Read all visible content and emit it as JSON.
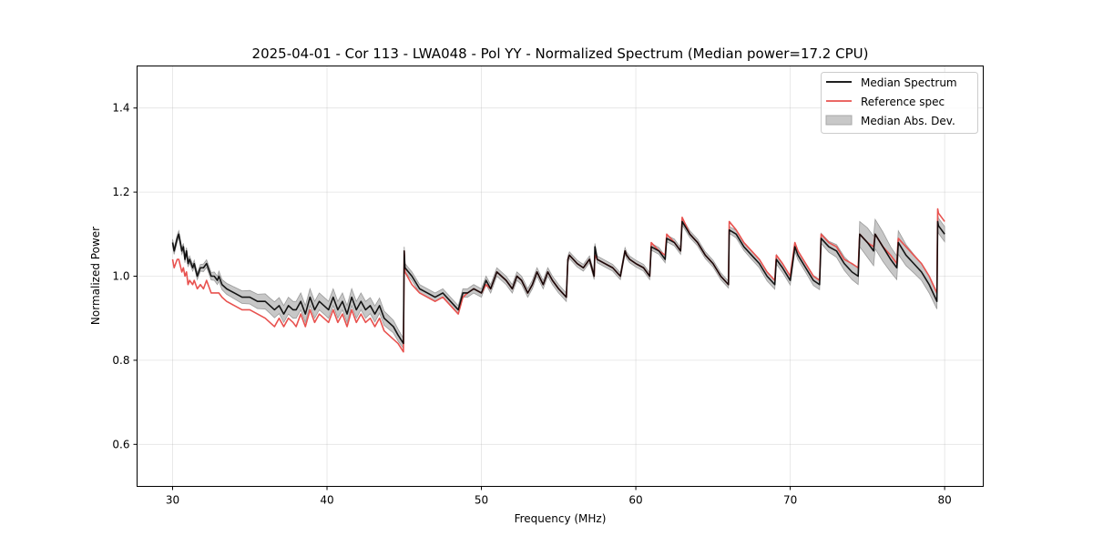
{
  "chart_data": {
    "type": "line",
    "title": "2025-04-01 - Cor 113 - LWA048 - Pol YY - Normalized Spectrum (Median power=17.2 CPU)",
    "xlabel": "Frequency (MHz)",
    "ylabel": "Normalized Power",
    "xlim": [
      27.7,
      82.5
    ],
    "ylim": [
      0.5,
      1.5
    ],
    "xticks": [
      30,
      40,
      50,
      60,
      70,
      80
    ],
    "yticks": [
      0.6,
      0.8,
      1.0,
      1.2,
      1.4
    ],
    "grid": true,
    "legend": {
      "position": "top-right",
      "entries": [
        "Median Spectrum",
        "Reference spec",
        "Median Abs. Dev."
      ]
    },
    "colors": {
      "median": "#000000",
      "reference": "#e8524f",
      "mad_band": "#bdbdbd"
    },
    "series": [
      {
        "name": "Median Spectrum",
        "x": [
          30.0,
          30.1,
          30.3,
          30.4,
          30.6,
          30.7,
          30.8,
          30.9,
          31.0,
          31.1,
          31.3,
          31.4,
          31.6,
          31.8,
          32.0,
          32.2,
          32.4,
          32.5,
          32.7,
          32.9,
          33.0,
          33.2,
          33.5,
          34.0,
          34.5,
          35.0,
          35.5,
          36.0,
          36.3,
          36.6,
          36.9,
          37.2,
          37.5,
          37.8,
          38.0,
          38.3,
          38.6,
          38.9,
          39.2,
          39.5,
          39.8,
          40.1,
          40.4,
          40.7,
          41.0,
          41.3,
          41.6,
          41.9,
          42.2,
          42.5,
          42.8,
          43.1,
          43.4,
          43.7,
          44.0,
          44.3,
          44.6,
          44.95,
          45.0,
          45.05,
          45.5,
          46.0,
          46.5,
          47.0,
          47.5,
          48.0,
          48.5,
          48.8,
          49.1,
          49.5,
          50.0,
          50.3,
          50.6,
          51.0,
          51.3,
          51.6,
          52.0,
          52.3,
          52.6,
          53.0,
          53.3,
          53.6,
          54.0,
          54.3,
          54.6,
          55.0,
          55.5,
          55.6,
          55.7,
          56.2,
          56.6,
          57.0,
          57.3,
          57.35,
          57.5,
          58.0,
          58.5,
          59.0,
          59.3,
          59.4,
          59.6,
          60.0,
          60.5,
          60.9,
          61.0,
          61.5,
          61.9,
          62.0,
          62.5,
          62.9,
          63.0,
          63.5,
          64.0,
          64.5,
          65.0,
          65.5,
          66.0,
          66.05,
          66.5,
          67.0,
          67.5,
          68.0,
          68.5,
          69.0,
          69.1,
          69.5,
          70.0,
          70.3,
          70.5,
          71.0,
          71.5,
          71.9,
          72.0,
          72.5,
          73.0,
          73.5,
          74.0,
          74.4,
          74.5,
          75.0,
          75.4,
          75.5,
          76.0,
          76.5,
          76.9,
          77.0,
          77.5,
          78.0,
          78.5,
          79.0,
          79.5,
          79.55,
          79.6,
          80.0
        ],
        "values": [
          1.08,
          1.06,
          1.09,
          1.1,
          1.06,
          1.07,
          1.04,
          1.06,
          1.03,
          1.04,
          1.02,
          1.03,
          1.0,
          1.02,
          1.02,
          1.03,
          1.01,
          1.0,
          1.0,
          0.99,
          1.0,
          0.98,
          0.97,
          0.96,
          0.95,
          0.95,
          0.94,
          0.94,
          0.93,
          0.92,
          0.93,
          0.91,
          0.93,
          0.92,
          0.92,
          0.94,
          0.91,
          0.95,
          0.92,
          0.94,
          0.93,
          0.92,
          0.95,
          0.92,
          0.94,
          0.91,
          0.95,
          0.92,
          0.94,
          0.92,
          0.93,
          0.91,
          0.93,
          0.9,
          0.89,
          0.88,
          0.86,
          0.84,
          1.06,
          1.02,
          1.0,
          0.97,
          0.96,
          0.95,
          0.96,
          0.94,
          0.92,
          0.96,
          0.96,
          0.97,
          0.96,
          0.99,
          0.97,
          1.01,
          1.0,
          0.99,
          0.97,
          1.0,
          0.99,
          0.96,
          0.98,
          1.01,
          0.98,
          1.01,
          0.99,
          0.97,
          0.95,
          1.04,
          1.05,
          1.03,
          1.02,
          1.04,
          1.0,
          1.07,
          1.04,
          1.03,
          1.02,
          1.0,
          1.06,
          1.05,
          1.04,
          1.03,
          1.02,
          1.0,
          1.07,
          1.06,
          1.04,
          1.09,
          1.08,
          1.06,
          1.13,
          1.1,
          1.08,
          1.05,
          1.03,
          1.0,
          0.98,
          1.11,
          1.1,
          1.07,
          1.05,
          1.03,
          1.0,
          0.98,
          1.04,
          1.02,
          0.99,
          1.07,
          1.05,
          1.02,
          0.99,
          0.98,
          1.09,
          1.07,
          1.06,
          1.03,
          1.01,
          1.0,
          1.1,
          1.08,
          1.06,
          1.1,
          1.07,
          1.04,
          1.02,
          1.08,
          1.05,
          1.03,
          1.01,
          0.98,
          0.94,
          1.13,
          1.12,
          1.1
        ]
      },
      {
        "name": "Reference spec",
        "x": [
          30.0,
          30.1,
          30.3,
          30.4,
          30.6,
          30.7,
          30.8,
          30.9,
          31.0,
          31.1,
          31.3,
          31.4,
          31.6,
          31.8,
          32.0,
          32.2,
          32.4,
          32.5,
          32.7,
          32.9,
          33.0,
          33.2,
          33.5,
          34.0,
          34.5,
          35.0,
          35.5,
          36.0,
          36.3,
          36.6,
          36.9,
          37.2,
          37.5,
          37.8,
          38.0,
          38.3,
          38.6,
          38.9,
          39.2,
          39.5,
          39.8,
          40.1,
          40.4,
          40.7,
          41.0,
          41.3,
          41.6,
          41.9,
          42.2,
          42.5,
          42.8,
          43.1,
          43.4,
          43.7,
          44.0,
          44.3,
          44.6,
          44.95,
          45.0,
          45.05,
          45.5,
          46.0,
          46.5,
          47.0,
          47.5,
          48.0,
          48.5,
          48.8,
          49.1,
          49.5,
          50.0,
          50.3,
          50.6,
          51.0,
          51.3,
          51.6,
          52.0,
          52.3,
          52.6,
          53.0,
          53.3,
          53.6,
          54.0,
          54.3,
          54.6,
          55.0,
          55.5,
          55.6,
          55.7,
          56.2,
          56.6,
          57.0,
          57.3,
          57.35,
          57.5,
          58.0,
          58.5,
          59.0,
          59.3,
          59.4,
          59.6,
          60.0,
          60.5,
          60.9,
          61.0,
          61.5,
          61.9,
          62.0,
          62.5,
          62.9,
          63.0,
          63.5,
          64.0,
          64.5,
          65.0,
          65.5,
          66.0,
          66.05,
          66.5,
          67.0,
          67.5,
          68.0,
          68.5,
          69.0,
          69.1,
          69.5,
          70.0,
          70.3,
          70.5,
          71.0,
          71.5,
          71.9,
          72.0,
          72.5,
          73.0,
          73.5,
          74.0,
          74.4,
          74.5,
          75.0,
          75.4,
          75.5,
          76.0,
          76.5,
          76.9,
          77.0,
          77.5,
          78.0,
          78.5,
          79.0,
          79.5,
          79.55,
          79.6,
          80.0
        ],
        "values": [
          1.04,
          1.02,
          1.04,
          1.04,
          1.01,
          1.02,
          1.0,
          1.01,
          0.98,
          0.99,
          0.98,
          0.99,
          0.97,
          0.98,
          0.97,
          0.99,
          0.97,
          0.96,
          0.96,
          0.96,
          0.96,
          0.95,
          0.94,
          0.93,
          0.92,
          0.92,
          0.91,
          0.9,
          0.89,
          0.88,
          0.9,
          0.88,
          0.9,
          0.89,
          0.88,
          0.91,
          0.88,
          0.92,
          0.89,
          0.91,
          0.9,
          0.89,
          0.92,
          0.89,
          0.91,
          0.88,
          0.92,
          0.89,
          0.91,
          0.89,
          0.9,
          0.88,
          0.9,
          0.87,
          0.86,
          0.85,
          0.84,
          0.82,
          1.06,
          1.01,
          0.98,
          0.96,
          0.95,
          0.94,
          0.95,
          0.93,
          0.91,
          0.95,
          0.96,
          0.97,
          0.96,
          0.98,
          0.97,
          1.01,
          1.0,
          0.99,
          0.97,
          1.0,
          0.99,
          0.96,
          0.98,
          1.01,
          0.98,
          1.01,
          0.99,
          0.97,
          0.95,
          1.04,
          1.05,
          1.03,
          1.02,
          1.04,
          1.0,
          1.05,
          1.04,
          1.03,
          1.02,
          1.0,
          1.06,
          1.05,
          1.04,
          1.03,
          1.02,
          1.0,
          1.08,
          1.06,
          1.05,
          1.1,
          1.08,
          1.06,
          1.14,
          1.1,
          1.08,
          1.05,
          1.03,
          1.0,
          0.98,
          1.13,
          1.11,
          1.08,
          1.06,
          1.04,
          1.01,
          0.99,
          1.05,
          1.03,
          1.0,
          1.08,
          1.06,
          1.03,
          1.0,
          0.99,
          1.1,
          1.08,
          1.07,
          1.04,
          1.03,
          1.02,
          1.1,
          1.08,
          1.07,
          1.1,
          1.07,
          1.05,
          1.03,
          1.09,
          1.07,
          1.05,
          1.03,
          1.0,
          0.96,
          1.16,
          1.15,
          1.13
        ]
      },
      {
        "name": "Median Abs. Dev.",
        "x": [
          30.0,
          30.1,
          30.3,
          30.4,
          30.6,
          30.7,
          30.8,
          30.9,
          31.0,
          31.1,
          31.3,
          31.4,
          31.6,
          31.8,
          32.0,
          32.2,
          32.4,
          32.5,
          32.7,
          32.9,
          33.0,
          33.2,
          33.5,
          34.0,
          34.5,
          35.0,
          35.5,
          36.0,
          36.3,
          36.6,
          36.9,
          37.2,
          37.5,
          37.8,
          38.0,
          38.3,
          38.6,
          38.9,
          39.2,
          39.5,
          39.8,
          40.1,
          40.4,
          40.7,
          41.0,
          41.3,
          41.6,
          41.9,
          42.2,
          42.5,
          42.8,
          43.1,
          43.4,
          43.7,
          44.0,
          44.3,
          44.6,
          44.95,
          45.0,
          45.05,
          45.5,
          46.0,
          46.5,
          47.0,
          47.5,
          48.0,
          48.5,
          48.8,
          49.1,
          49.5,
          50.0,
          50.3,
          50.6,
          51.0,
          51.3,
          51.6,
          52.0,
          52.3,
          52.6,
          53.0,
          53.3,
          53.6,
          54.0,
          54.3,
          54.6,
          55.0,
          55.5,
          55.6,
          55.7,
          56.2,
          56.6,
          57.0,
          57.3,
          57.35,
          57.5,
          58.0,
          58.5,
          59.0,
          59.3,
          59.4,
          59.6,
          60.0,
          60.5,
          60.9,
          61.0,
          61.5,
          61.9,
          62.0,
          62.5,
          62.9,
          63.0,
          63.5,
          64.0,
          64.5,
          65.0,
          65.5,
          66.0,
          66.05,
          66.5,
          67.0,
          67.5,
          68.0,
          68.5,
          69.0,
          69.1,
          69.5,
          70.0,
          70.3,
          70.5,
          71.0,
          71.5,
          71.9,
          72.0,
          72.5,
          73.0,
          73.5,
          74.0,
          74.4,
          74.5,
          75.0,
          75.4,
          75.5,
          76.0,
          76.5,
          76.9,
          77.0,
          77.5,
          78.0,
          78.5,
          79.0,
          79.5,
          79.55,
          79.6,
          80.0
        ],
        "values": [
          0.008,
          0.008,
          0.008,
          0.008,
          0.008,
          0.008,
          0.008,
          0.008,
          0.008,
          0.008,
          0.008,
          0.008,
          0.008,
          0.008,
          0.009,
          0.009,
          0.009,
          0.009,
          0.01,
          0.01,
          0.012,
          0.012,
          0.013,
          0.014,
          0.015,
          0.016,
          0.017,
          0.018,
          0.018,
          0.019,
          0.019,
          0.02,
          0.02,
          0.02,
          0.02,
          0.02,
          0.02,
          0.02,
          0.02,
          0.02,
          0.02,
          0.02,
          0.02,
          0.02,
          0.02,
          0.02,
          0.02,
          0.02,
          0.02,
          0.02,
          0.019,
          0.019,
          0.018,
          0.017,
          0.016,
          0.015,
          0.014,
          0.012,
          0.01,
          0.01,
          0.01,
          0.01,
          0.01,
          0.01,
          0.01,
          0.01,
          0.01,
          0.01,
          0.01,
          0.01,
          0.01,
          0.01,
          0.01,
          0.01,
          0.01,
          0.01,
          0.01,
          0.01,
          0.01,
          0.01,
          0.01,
          0.01,
          0.01,
          0.01,
          0.01,
          0.01,
          0.01,
          0.008,
          0.008,
          0.008,
          0.008,
          0.008,
          0.008,
          0.008,
          0.008,
          0.008,
          0.008,
          0.008,
          0.008,
          0.008,
          0.008,
          0.008,
          0.008,
          0.008,
          0.008,
          0.008,
          0.008,
          0.008,
          0.008,
          0.008,
          0.008,
          0.008,
          0.008,
          0.008,
          0.008,
          0.008,
          0.008,
          0.008,
          0.009,
          0.009,
          0.01,
          0.01,
          0.011,
          0.011,
          0.011,
          0.011,
          0.011,
          0.011,
          0.011,
          0.011,
          0.012,
          0.012,
          0.012,
          0.013,
          0.015,
          0.016,
          0.018,
          0.02,
          0.03,
          0.035,
          0.035,
          0.035,
          0.035,
          0.03,
          0.028,
          0.028,
          0.025,
          0.022,
          0.02,
          0.02,
          0.018,
          0.018,
          0.018,
          0.018
        ]
      }
    ]
  }
}
